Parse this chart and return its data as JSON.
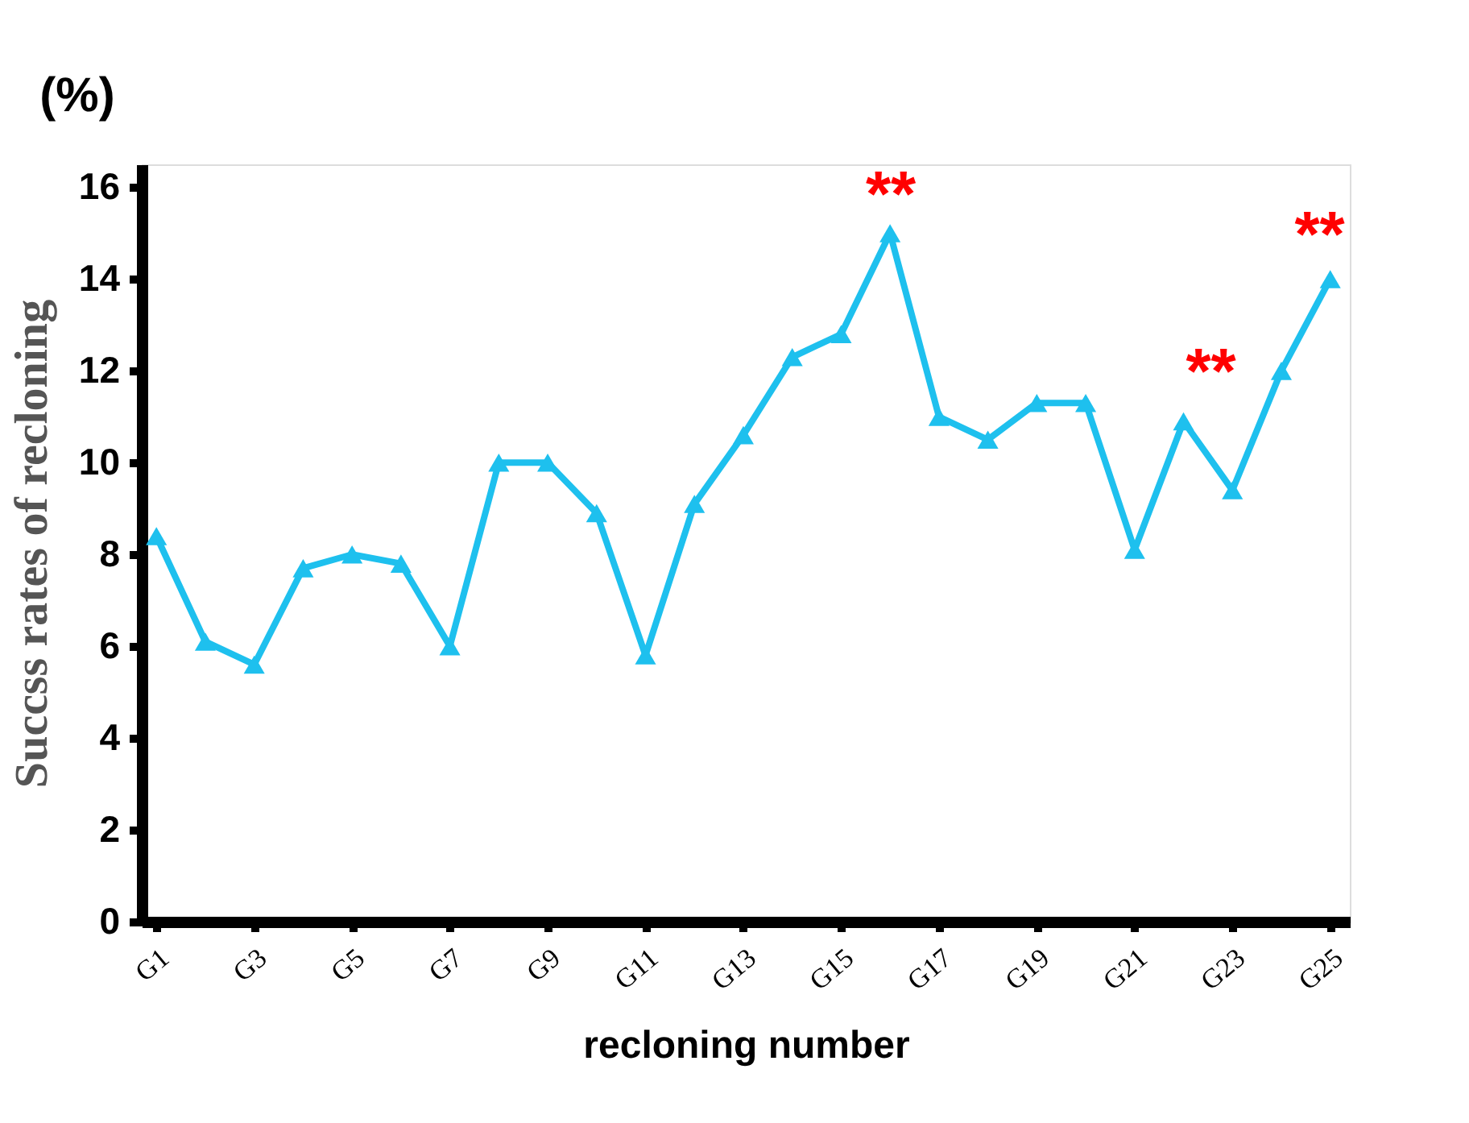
{
  "chart_data": {
    "type": "line",
    "xlabel": "recloning number",
    "ylabel": "Succss  rates of recloning",
    "categories": [
      "G1",
      null,
      "G3",
      null,
      "G5",
      null,
      "G7",
      null,
      "G9",
      null,
      "G11",
      null,
      "G13",
      null,
      "G15",
      null,
      "G17",
      null,
      "G19",
      null,
      "G21",
      null,
      "G23",
      null,
      "G25"
    ],
    "series": [
      {
        "color": "#1ec0ee",
        "values": [
          8.4,
          6.1,
          5.6,
          7.7,
          8.0,
          7.8,
          6.0,
          10.0,
          10.0,
          8.9,
          5.8,
          9.1,
          10.6,
          12.3,
          12.8,
          15.0,
          11.0,
          10.5,
          11.3,
          11.3,
          8.1,
          10.9,
          9.4,
          12.0,
          14.0
        ]
      }
    ],
    "ylim": [
      0,
      16.5
    ],
    "yticks": [
      0,
      2,
      4,
      6,
      8,
      10,
      12,
      14,
      16
    ],
    "annotations": [
      "(%)",
      "**",
      "**",
      "**"
    ],
    "marker": "triangle",
    "line_style": "solid",
    "grid": false
  }
}
